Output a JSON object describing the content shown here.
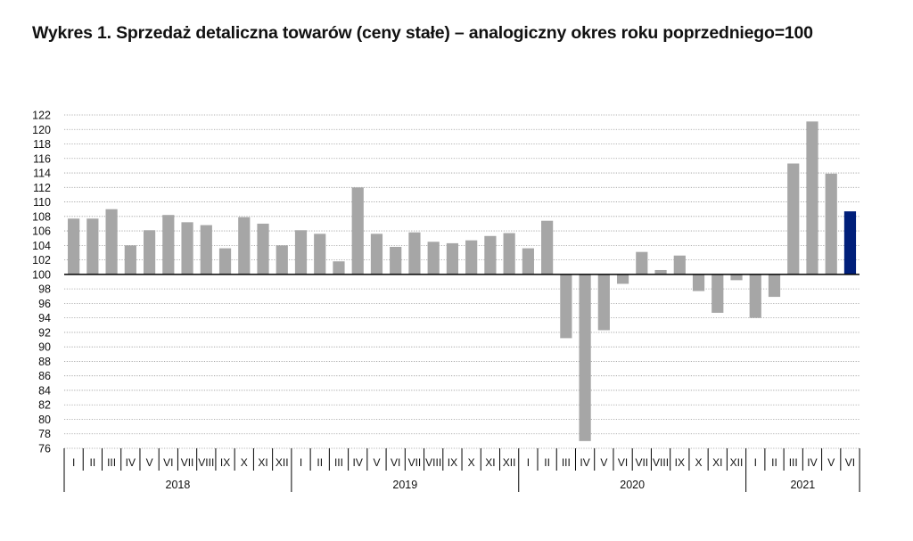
{
  "chart_data": {
    "type": "bar",
    "title": "Wykres 1. Sprzedaż detaliczna towarów (ceny stałe) – analogiczny okres roku poprzedniego=100",
    "baseline": 100,
    "ylim": [
      76,
      122
    ],
    "ystep": 2,
    "grid": true,
    "grid_style": "dotted horizontal",
    "xlabel": "",
    "ylabel": "",
    "years": [
      {
        "label": "2018",
        "months": [
          "I",
          "II",
          "III",
          "IV",
          "V",
          "VI",
          "VII",
          "VIII",
          "IX",
          "X",
          "XI",
          "XII"
        ]
      },
      {
        "label": "2019",
        "months": [
          "I",
          "II",
          "III",
          "IV",
          "V",
          "VI",
          "VII",
          "VIII",
          "IX",
          "X",
          "XI",
          "XII"
        ]
      },
      {
        "label": "2020",
        "months": [
          "I",
          "II",
          "III",
          "IV",
          "V",
          "VI",
          "VII",
          "VIII",
          "IX",
          "X",
          "XI",
          "XII"
        ]
      },
      {
        "label": "2021",
        "months": [
          "I",
          "II",
          "III",
          "IV",
          "V",
          "VI"
        ]
      }
    ],
    "values": [
      107.7,
      107.7,
      109.0,
      104.0,
      106.1,
      108.2,
      107.2,
      106.8,
      103.6,
      107.9,
      107.0,
      104.0,
      106.1,
      105.6,
      101.8,
      112.0,
      105.6,
      103.8,
      105.8,
      104.5,
      104.3,
      104.7,
      105.3,
      105.7,
      103.6,
      107.4,
      91.2,
      77.0,
      92.3,
      98.7,
      103.1,
      100.6,
      102.6,
      97.7,
      94.7,
      99.2,
      94.0,
      96.9,
      115.3,
      121.1,
      113.9,
      108.7
    ],
    "colors": {
      "default": "#a6a6a6",
      "highlight": "#001f7a",
      "grid": "#9a9a9a",
      "axis": "#000000"
    },
    "highlight_index": 41
  }
}
